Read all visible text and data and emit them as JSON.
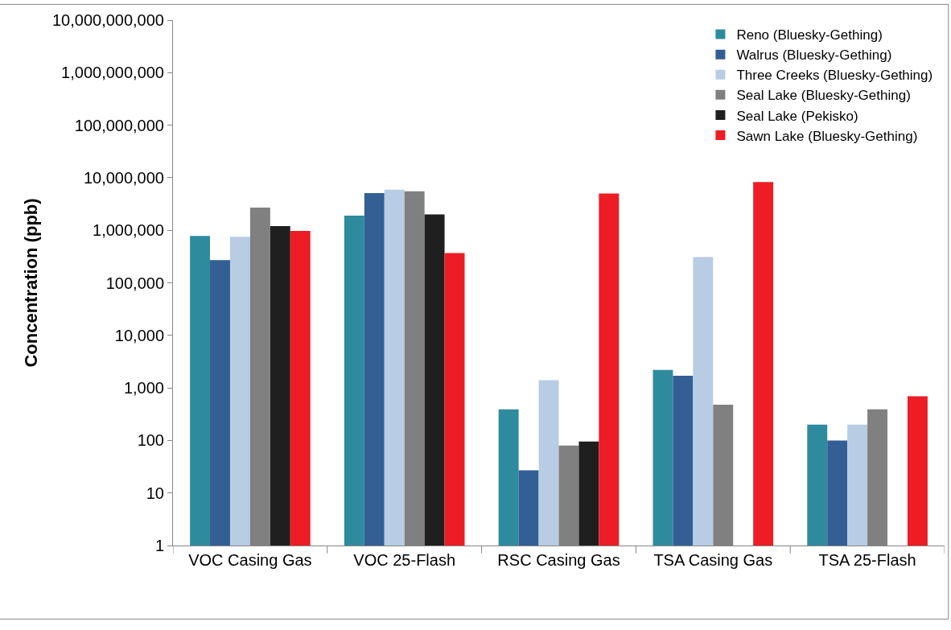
{
  "chart_data": {
    "type": "bar",
    "ylabel": "Concentration (ppb)",
    "log": true,
    "grid": false,
    "legend": "top right",
    "categories": [
      "VOC Casing Gas",
      "VOC 25-Flash",
      "RSC Casing Gas",
      "TSA Casing Gas",
      "TSA 25-Flash"
    ],
    "ylim": [
      1,
      10000000000
    ],
    "yticks": [
      {
        "value": 1,
        "label": "1"
      },
      {
        "value": 10,
        "label": "10"
      },
      {
        "value": 100,
        "label": "100"
      },
      {
        "value": 1000,
        "label": "1,000"
      },
      {
        "value": 10000,
        "label": "10,000"
      },
      {
        "value": 100000,
        "label": "100,000"
      },
      {
        "value": 1000000,
        "label": "1,000,000"
      },
      {
        "value": 10000000,
        "label": "10,000,000"
      },
      {
        "value": 100000000,
        "label": "100,000,000"
      },
      {
        "value": 1000000000,
        "label": "1,000,000,000"
      },
      {
        "value": 10000000000,
        "label": "10,000,000,000"
      }
    ],
    "series": [
      {
        "name": "Reno (Bluesky-Gething)",
        "color": "#2e8b9e",
        "values": [
          780000,
          1900000,
          390,
          2200,
          200
        ]
      },
      {
        "name": "Walrus (Bluesky-Gething)",
        "color": "#335f95",
        "values": [
          270000,
          5100000,
          27,
          1700,
          100
        ]
      },
      {
        "name": "Three Creeks (Bluesky-Gething)",
        "color": "#b8cce4",
        "values": [
          750000,
          5900000,
          1400,
          310000,
          200
        ]
      },
      {
        "name": "Seal Lake (Bluesky-Gething)",
        "color": "#808080",
        "values": [
          2700000,
          5500000,
          80,
          480,
          390
        ]
      },
      {
        "name": "Seal Lake (Pekisko)",
        "color": "#1f1f1f",
        "values": [
          1200000,
          2000000,
          95,
          null,
          null
        ]
      },
      {
        "name": "Sawn Lake (Bluesky-Gething)",
        "color": "#ee1c24",
        "values": [
          970000,
          370000,
          5000000,
          8300000,
          690
        ]
      }
    ]
  }
}
